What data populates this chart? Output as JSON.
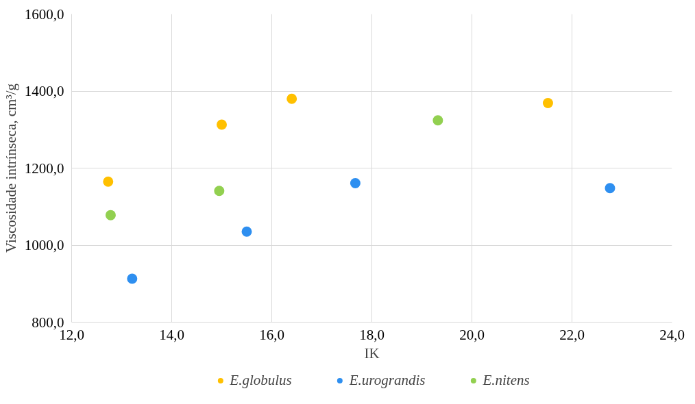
{
  "chart_data": {
    "type": "scatter",
    "xlabel": "IK",
    "ylabel": "Viscosidade intrínseca, cm³/g",
    "xlim": [
      12,
      24
    ],
    "ylim": [
      800,
      1600
    ],
    "xticks": [
      {
        "value": 12,
        "label": "12,0"
      },
      {
        "value": 14,
        "label": "14,0"
      },
      {
        "value": 16,
        "label": "16,0"
      },
      {
        "value": 18,
        "label": "18,0"
      },
      {
        "value": 20,
        "label": "20,0"
      },
      {
        "value": 22,
        "label": "22,0"
      },
      {
        "value": 24,
        "label": "24,0"
      }
    ],
    "yticks": [
      {
        "value": 800,
        "label": "800,0"
      },
      {
        "value": 1000,
        "label": "1000,0"
      },
      {
        "value": 1200,
        "label": "1200,0"
      },
      {
        "value": 1400,
        "label": "1400,0"
      },
      {
        "value": 1600,
        "label": "1600,0"
      }
    ],
    "grid": true,
    "legend": "bottom",
    "marker": "circle",
    "series": [
      {
        "name": "E.globulus",
        "color": "#ffc000",
        "x": [
          12.73,
          15.0,
          16.4,
          21.52
        ],
        "values": [
          1165,
          1313,
          1380,
          1369
        ]
      },
      {
        "name": "E.urograndis",
        "color": "#2e8ff0",
        "x": [
          13.21,
          15.5,
          17.67,
          22.76
        ],
        "values": [
          913,
          1035,
          1161,
          1148
        ]
      },
      {
        "name": "E.nitens",
        "color": "#92d050",
        "x": [
          12.78,
          14.95,
          19.32
        ],
        "values": [
          1078,
          1141,
          1324
        ]
      }
    ]
  }
}
